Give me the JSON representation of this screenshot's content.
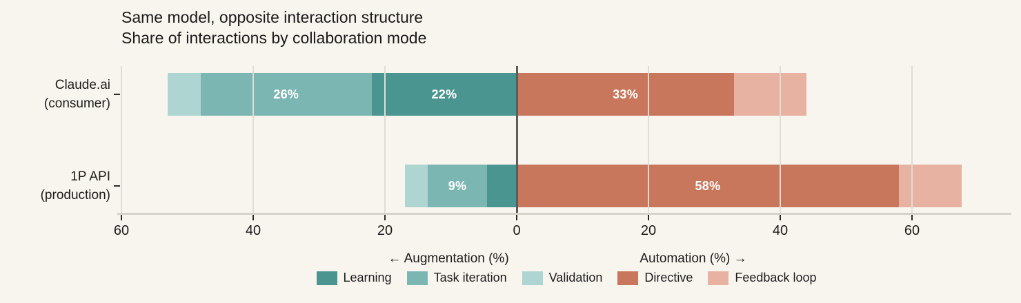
{
  "title": "Same model, opposite interaction structure",
  "subtitle": "Share of interactions by collaboration mode",
  "axis": {
    "left_label": "← Augmentation (%)",
    "right_label": "Automation (%) →"
  },
  "legend": {
    "items": [
      {
        "name": "Learning",
        "color": "#4b9591"
      },
      {
        "name": "Task iteration",
        "color": "#7cb6b3"
      },
      {
        "name": "Validation",
        "color": "#aed5d1"
      },
      {
        "name": "Directive",
        "color": "#c9775c"
      },
      {
        "name": "Feedback loop",
        "color": "#e7b2a2"
      }
    ]
  },
  "colors": {
    "background": "#f8f5ef",
    "zero_line": "#5c5c5c",
    "axis_line": "#d6d3cb",
    "gridline": "#e0ddd6",
    "bar_label_text": "#ffffff"
  },
  "chart_data": {
    "type": "bar",
    "orientation": "horizontal-diverging-stacked",
    "unit": "%",
    "title": "Same model, opposite interaction structure",
    "subtitle": "Share of interactions by collaboration mode",
    "xlabel_left": "← Augmentation (%)",
    "xlabel_right": "Automation (%) →",
    "xlim": [
      -62,
      75
    ],
    "x_ticks": [
      -60,
      -40,
      -20,
      0,
      20,
      40,
      60
    ],
    "x_tick_labels": [
      "60",
      "40",
      "20",
      "0",
      "20",
      "40",
      "60"
    ],
    "grid": true,
    "legend_position": "bottom",
    "rows": [
      {
        "category": "Claude.ai (consumer)",
        "category_lines": [
          "Claude.ai",
          "(consumer)"
        ],
        "augmentation": [
          {
            "mode": "Learning",
            "value": 22,
            "label": "22%"
          },
          {
            "mode": "Task iteration",
            "value": 26,
            "label": "26%"
          },
          {
            "mode": "Validation",
            "value": 5,
            "label": ""
          }
        ],
        "automation": [
          {
            "mode": "Directive",
            "value": 33,
            "label": "33%"
          },
          {
            "mode": "Feedback loop",
            "value": 11,
            "label": ""
          }
        ]
      },
      {
        "category": "1P API (production)",
        "category_lines": [
          "1P API",
          "(production)"
        ],
        "augmentation": [
          {
            "mode": "Learning",
            "value": 4.5,
            "label": ""
          },
          {
            "mode": "Task iteration",
            "value": 9,
            "label": "9%"
          },
          {
            "mode": "Validation",
            "value": 3.5,
            "label": ""
          }
        ],
        "automation": [
          {
            "mode": "Directive",
            "value": 58,
            "label": "58%"
          },
          {
            "mode": "Feedback loop",
            "value": 9.5,
            "label": ""
          }
        ]
      }
    ]
  }
}
